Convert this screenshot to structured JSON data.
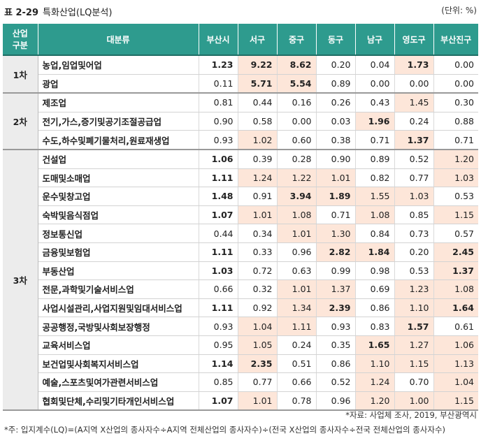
{
  "caption": {
    "number": "표 2-29",
    "title": "특화산업(LQ분석)"
  },
  "unit": "(단위: %)",
  "headers": {
    "group": "산업\n구분",
    "category": "대분류",
    "busan": "부산시",
    "cols": [
      "서구",
      "중구",
      "동구",
      "남구",
      "영도구",
      "부산진구"
    ]
  },
  "groups": [
    {
      "label": "1차",
      "rows": [
        {
          "name": "농업,임업및어업",
          "busan": "1.23",
          "busan_bold": true,
          "vals": [
            "9.22",
            "8.62",
            "0.20",
            "0.04",
            "1.73",
            "0.00"
          ],
          "hl": [
            true,
            true,
            false,
            false,
            true,
            false
          ]
        },
        {
          "name": "광업",
          "busan": "0.11",
          "busan_bold": false,
          "vals": [
            "5.71",
            "5.54",
            "0.89",
            "0.00",
            "0.00",
            "0.00"
          ],
          "hl": [
            true,
            true,
            false,
            false,
            false,
            false
          ]
        }
      ]
    },
    {
      "label": "2차",
      "rows": [
        {
          "name": "제조업",
          "busan": "0.81",
          "busan_bold": false,
          "vals": [
            "0.44",
            "0.16",
            "0.26",
            "0.43",
            "1.45",
            "0.30"
          ],
          "hl": [
            false,
            false,
            false,
            false,
            true,
            false
          ]
        },
        {
          "name": "전기,가스,증기및공기조절공급업",
          "busan": "0.90",
          "busan_bold": false,
          "vals": [
            "0.58",
            "0.00",
            "0.03",
            "1.96",
            "0.24",
            "0.88"
          ],
          "hl": [
            false,
            false,
            false,
            true,
            false,
            false
          ]
        },
        {
          "name": "수도,하수및폐기물처리,원료재생업",
          "busan": "0.93",
          "busan_bold": false,
          "vals": [
            "1.02",
            "0.60",
            "0.38",
            "0.71",
            "1.37",
            "0.71"
          ],
          "hl": [
            true,
            false,
            false,
            false,
            true,
            false
          ]
        }
      ]
    },
    {
      "label": "3차",
      "rows": [
        {
          "name": "건설업",
          "busan": "1.06",
          "busan_bold": true,
          "vals": [
            "0.39",
            "0.28",
            "0.90",
            "0.89",
            "0.52",
            "1.20"
          ],
          "hl": [
            false,
            false,
            false,
            false,
            false,
            true
          ]
        },
        {
          "name": "도매및소매업",
          "busan": "1.11",
          "busan_bold": true,
          "vals": [
            "1.24",
            "1.22",
            "1.01",
            "0.82",
            "0.77",
            "1.03"
          ],
          "hl": [
            true,
            true,
            true,
            false,
            false,
            true
          ]
        },
        {
          "name": "운수및창고업",
          "busan": "1.48",
          "busan_bold": true,
          "vals": [
            "0.91",
            "3.94",
            "1.89",
            "1.55",
            "1.03",
            "0.53"
          ],
          "hl": [
            false,
            true,
            true,
            true,
            true,
            false
          ]
        },
        {
          "name": "숙박및음식점업",
          "busan": "1.07",
          "busan_bold": true,
          "vals": [
            "1.01",
            "1.08",
            "0.71",
            "1.08",
            "0.85",
            "1.15"
          ],
          "hl": [
            true,
            true,
            false,
            true,
            false,
            true
          ]
        },
        {
          "name": "정보통신업",
          "busan": "0.44",
          "busan_bold": false,
          "vals": [
            "0.34",
            "1.01",
            "1.30",
            "0.84",
            "0.73",
            "0.57"
          ],
          "hl": [
            false,
            true,
            true,
            false,
            false,
            false
          ]
        },
        {
          "name": "금융및보험업",
          "busan": "1.11",
          "busan_bold": true,
          "vals": [
            "0.33",
            "0.96",
            "2.82",
            "1.84",
            "0.20",
            "2.45"
          ],
          "hl": [
            false,
            false,
            true,
            true,
            false,
            true
          ]
        },
        {
          "name": "부동산업",
          "busan": "1.03",
          "busan_bold": true,
          "vals": [
            "0.72",
            "0.63",
            "0.99",
            "0.98",
            "0.53",
            "1.37"
          ],
          "hl": [
            false,
            false,
            false,
            false,
            false,
            true
          ]
        },
        {
          "name": "전문,과학및기술서비스업",
          "busan": "0.66",
          "busan_bold": false,
          "vals": [
            "0.32",
            "1.01",
            "1.37",
            "0.69",
            "1.23",
            "1.08"
          ],
          "hl": [
            false,
            true,
            true,
            false,
            true,
            true
          ]
        },
        {
          "name": "사업시설관리,사업지원및임대서비스업",
          "busan": "1.11",
          "busan_bold": true,
          "vals": [
            "0.92",
            "1.34",
            "2.39",
            "0.86",
            "1.10",
            "1.64"
          ],
          "hl": [
            false,
            true,
            true,
            false,
            true,
            true
          ]
        },
        {
          "name": "공공행정,국방및사회보장행정",
          "busan": "0.93",
          "busan_bold": false,
          "vals": [
            "1.04",
            "1.11",
            "0.93",
            "0.83",
            "1.57",
            "0.61"
          ],
          "hl": [
            true,
            true,
            false,
            false,
            true,
            false
          ]
        },
        {
          "name": "교육서비스업",
          "busan": "0.95",
          "busan_bold": false,
          "vals": [
            "1.05",
            "0.24",
            "0.35",
            "1.65",
            "1.27",
            "1.06"
          ],
          "hl": [
            true,
            false,
            false,
            true,
            true,
            true
          ]
        },
        {
          "name": "보건업및사회복지서비스업",
          "busan": "1.14",
          "busan_bold": true,
          "vals": [
            "2.35",
            "0.51",
            "0.86",
            "1.10",
            "1.15",
            "1.13"
          ],
          "hl": [
            true,
            false,
            false,
            true,
            true,
            true
          ]
        },
        {
          "name": "예술,스포츠및여가관련서비스업",
          "busan": "0.85",
          "busan_bold": false,
          "vals": [
            "0.77",
            "0.66",
            "0.52",
            "1.24",
            "0.70",
            "1.04"
          ],
          "hl": [
            false,
            false,
            false,
            true,
            false,
            true
          ]
        },
        {
          "name": "협회및단체,수리및기타개인서비스업",
          "busan": "1.07",
          "busan_bold": true,
          "vals": [
            "1.01",
            "0.78",
            "0.96",
            "1.20",
            "1.00",
            "1.15"
          ],
          "hl": [
            true,
            false,
            false,
            true,
            true,
            true
          ]
        }
      ]
    }
  ],
  "bold_cells": [
    "9.22",
    "8.62",
    "1.73",
    "5.71",
    "5.54",
    "1.96",
    "1.37",
    "3.94",
    "1.89",
    "2.82",
    "1.84",
    "2.45",
    "1.37",
    "2.39",
    "1.64",
    "1.57",
    "1.65",
    "2.35"
  ],
  "source": "*자료: 사업체 조사, 2019, 부산광역시",
  "note": "*주: 입지계수(LQ)=(A지역 X산업의 종사자수÷A지역 전체산업의 종사자수)÷(전국 X산업의 종사자수÷전국 전체산업의 종사자수)",
  "colors": {
    "header": "#2e9b8e",
    "highlight": "#fde6d9",
    "group": "#ececec"
  }
}
